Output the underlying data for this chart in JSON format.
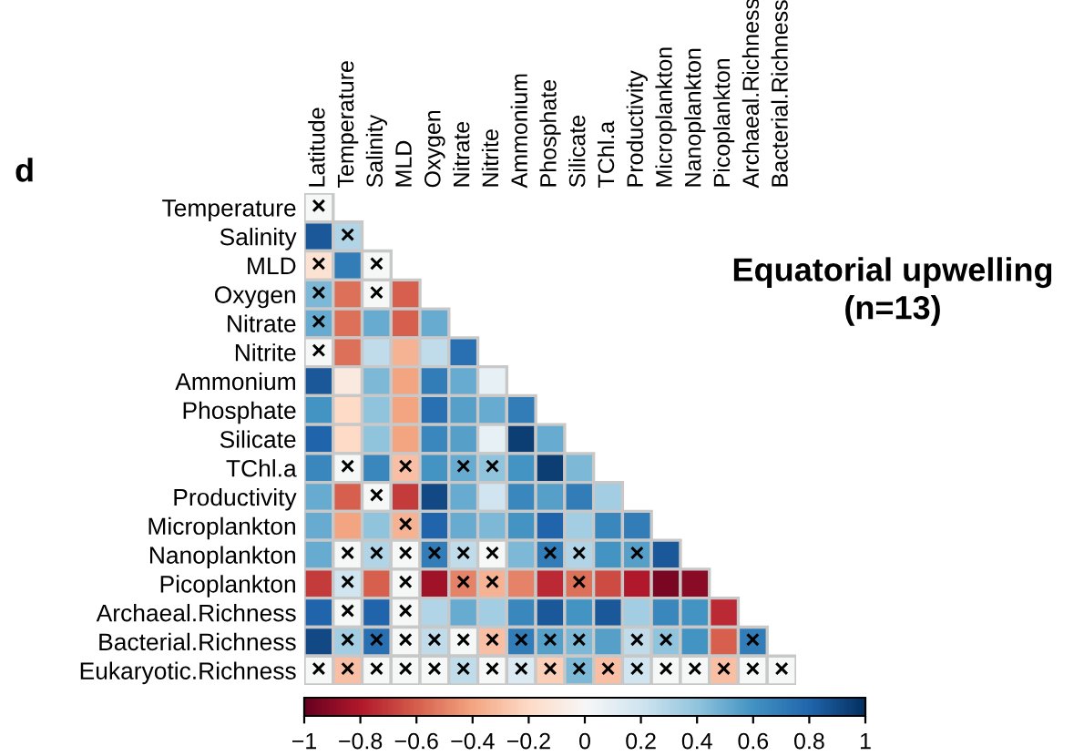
{
  "chart_data": {
    "type": "heatmap",
    "title": "Equatorial upwelling\n(n=13)",
    "annotations": [
      "d"
    ],
    "categories": [
      "Latitude",
      "Temperature",
      "Salinity",
      "MLD",
      "Oxygen",
      "Nitrate",
      "Nitrite",
      "Ammonium",
      "Phosphate",
      "Silicate",
      "TChl.a",
      "Productivity",
      "Microplankton",
      "Nanoplankton",
      "Picoplankton",
      "Archaeal.Richness",
      "Bacterial.Richness"
    ],
    "y_categories": [
      "Temperature",
      "Salinity",
      "MLD",
      "Oxygen",
      "Nitrate",
      "Nitrite",
      "Ammonium",
      "Phosphate",
      "Silicate",
      "TChl.a",
      "Productivity",
      "Microplankton",
      "Nanoplankton",
      "Picoplankton",
      "Archaeal.Richness",
      "Bacterial.Richness",
      "Eukaryotic.Richness"
    ],
    "cells": [
      [
        0,
        null,
        null,
        null,
        null,
        null,
        null,
        null,
        null,
        null,
        null,
        null,
        null,
        null,
        null,
        null,
        null
      ],
      [
        0.85,
        0.3,
        null,
        null,
        null,
        null,
        null,
        null,
        null,
        null,
        null,
        null,
        null,
        null,
        null,
        null,
        null
      ],
      [
        -0.15,
        0.7,
        0,
        null,
        null,
        null,
        null,
        null,
        null,
        null,
        null,
        null,
        null,
        null,
        null,
        null,
        null
      ],
      [
        0.45,
        -0.55,
        0,
        -0.6,
        null,
        null,
        null,
        null,
        null,
        null,
        null,
        null,
        null,
        null,
        null,
        null,
        null
      ],
      [
        0.5,
        -0.55,
        0.5,
        -0.6,
        0.5,
        null,
        null,
        null,
        null,
        null,
        null,
        null,
        null,
        null,
        null,
        null,
        null
      ],
      [
        0,
        -0.55,
        0.25,
        -0.35,
        0.25,
        0.75,
        null,
        null,
        null,
        null,
        null,
        null,
        null,
        null,
        null,
        null,
        null
      ],
      [
        0.85,
        -0.1,
        0.45,
        -0.4,
        0.7,
        0.5,
        0.08,
        null,
        null,
        null,
        null,
        null,
        null,
        null,
        null,
        null,
        null
      ],
      [
        0.6,
        -0.2,
        0.4,
        -0.4,
        0.75,
        0.55,
        0.5,
        0.7,
        null,
        null,
        null,
        null,
        null,
        null,
        null,
        null,
        null
      ],
      [
        0.8,
        -0.2,
        0.4,
        -0.4,
        0.65,
        0.55,
        0.08,
        0.95,
        0.5,
        null,
        null,
        null,
        null,
        null,
        null,
        null,
        null
      ],
      [
        0.65,
        0,
        0.65,
        -0.3,
        0.6,
        0.5,
        0.4,
        0.6,
        0.95,
        0.45,
        null,
        null,
        null,
        null,
        null,
        null,
        null
      ],
      [
        0.5,
        -0.6,
        0,
        -0.7,
        0.9,
        0.5,
        0.2,
        0.65,
        0.55,
        0.7,
        0.35,
        null,
        null,
        null,
        null,
        null,
        null
      ],
      [
        0.5,
        -0.4,
        0.4,
        -0.35,
        0.8,
        0.5,
        0.45,
        0.6,
        0.8,
        0.35,
        0.65,
        0.7,
        null,
        null,
        null,
        null,
        null
      ],
      [
        0.5,
        0,
        0.3,
        0,
        0.7,
        0.25,
        0,
        0.45,
        0.7,
        0.3,
        0.6,
        0.55,
        0.85,
        null,
        null,
        null,
        null
      ],
      [
        -0.7,
        0.2,
        -0.6,
        0,
        -0.85,
        -0.5,
        -0.35,
        -0.5,
        -0.75,
        -0.55,
        -0.65,
        -0.8,
        -0.95,
        -0.9,
        null,
        null,
        null
      ],
      [
        0.8,
        0,
        0.8,
        0,
        0.3,
        0.5,
        0.35,
        0.65,
        0.85,
        0.6,
        0.85,
        0.35,
        0.65,
        0.6,
        -0.75,
        null,
        null
      ],
      [
        0.9,
        0.35,
        0.75,
        0,
        0.25,
        0,
        -0.3,
        0.7,
        0.55,
        0.45,
        0.55,
        0.25,
        0.4,
        0.6,
        -0.6,
        0.7,
        null
      ],
      [
        0,
        -0.3,
        0,
        0,
        0,
        0.25,
        0,
        0.15,
        -0.25,
        0.45,
        -0.3,
        0.2,
        0,
        0,
        -0.3,
        0,
        0
      ]
    ],
    "cell_labels": [
      [
        "×",
        null,
        null,
        null,
        null,
        null,
        null,
        null,
        null,
        null,
        null,
        null,
        null,
        null,
        null,
        null,
        null
      ],
      [
        null,
        "×",
        null,
        null,
        null,
        null,
        null,
        null,
        null,
        null,
        null,
        null,
        null,
        null,
        null,
        null,
        null
      ],
      [
        "×",
        null,
        "×",
        null,
        null,
        null,
        null,
        null,
        null,
        null,
        null,
        null,
        null,
        null,
        null,
        null,
        null
      ],
      [
        "×",
        null,
        "×",
        null,
        null,
        null,
        null,
        null,
        null,
        null,
        null,
        null,
        null,
        null,
        null,
        null,
        null
      ],
      [
        "×",
        null,
        null,
        null,
        null,
        null,
        null,
        null,
        null,
        null,
        null,
        null,
        null,
        null,
        null,
        null,
        null
      ],
      [
        "×",
        null,
        null,
        null,
        null,
        null,
        null,
        null,
        null,
        null,
        null,
        null,
        null,
        null,
        null,
        null,
        null
      ],
      [
        null,
        null,
        null,
        null,
        null,
        null,
        null,
        null,
        null,
        null,
        null,
        null,
        null,
        null,
        null,
        null,
        null
      ],
      [
        null,
        null,
        null,
        null,
        null,
        null,
        null,
        null,
        null,
        null,
        null,
        null,
        null,
        null,
        null,
        null,
        null
      ],
      [
        null,
        null,
        null,
        null,
        null,
        null,
        null,
        null,
        null,
        null,
        null,
        null,
        null,
        null,
        null,
        null,
        null
      ],
      [
        null,
        "×",
        null,
        "×",
        null,
        "×",
        "×",
        null,
        null,
        null,
        null,
        null,
        null,
        null,
        null,
        null,
        null
      ],
      [
        null,
        null,
        "×",
        null,
        null,
        null,
        null,
        null,
        null,
        null,
        null,
        null,
        null,
        null,
        null,
        null,
        null
      ],
      [
        null,
        null,
        null,
        "×",
        null,
        null,
        null,
        null,
        null,
        null,
        null,
        null,
        null,
        null,
        null,
        null,
        null
      ],
      [
        null,
        "×",
        "×",
        "×",
        "×",
        "×",
        "×",
        null,
        "×",
        "×",
        null,
        "×",
        null,
        null,
        null,
        null,
        null
      ],
      [
        null,
        "×",
        null,
        "×",
        null,
        "×",
        "×",
        null,
        null,
        "×",
        null,
        null,
        null,
        null,
        null,
        null,
        null
      ],
      [
        null,
        "×",
        null,
        "×",
        null,
        null,
        null,
        null,
        null,
        null,
        null,
        null,
        null,
        null,
        null,
        null,
        null
      ],
      [
        null,
        "×",
        "×",
        "×",
        "×",
        "×",
        "×",
        "×",
        "×",
        "×",
        null,
        "×",
        "×",
        null,
        null,
        "×",
        null
      ],
      [
        "×",
        "×",
        "×",
        "×",
        "×",
        "×",
        "×",
        "×",
        "×",
        "×",
        "×",
        "×",
        "×",
        "×",
        "×",
        "×",
        "×"
      ]
    ],
    "clim": [
      -1,
      1
    ],
    "cticks": [
      {
        "value": -1,
        "label": "−1"
      },
      {
        "value": -0.8,
        "label": "−0.8"
      },
      {
        "value": -0.6,
        "label": "−0.6"
      },
      {
        "value": -0.4,
        "label": "−0.4"
      },
      {
        "value": -0.2,
        "label": "−0.2"
      },
      0,
      0.2,
      0.4,
      0.6,
      0.8,
      1
    ]
  }
}
